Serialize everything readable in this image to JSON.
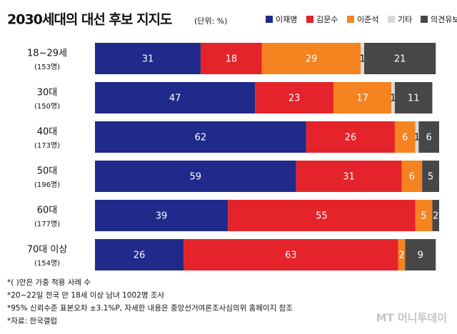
{
  "chart_data": {
    "type": "stacked-bar-horizontal",
    "title": "2030세대의 대선 후보 지지도",
    "subtitle": "(단위: %)",
    "categories": [
      "18~29세",
      "30대",
      "40대",
      "50대",
      "60대",
      "70대 이상"
    ],
    "category_counts": [
      "(153명)",
      "(150명)",
      "(173명)",
      "(196명)",
      "(177명)",
      "(154명)"
    ],
    "series": [
      {
        "name": "이재명",
        "color": "#1f2a8a",
        "values": [
          31,
          47,
          62,
          59,
          39,
          26
        ]
      },
      {
        "name": "김문수",
        "color": "#e5232b",
        "values": [
          18,
          23,
          26,
          31,
          55,
          63
        ]
      },
      {
        "name": "이준석",
        "color": "#f5831f",
        "values": [
          29,
          17,
          6,
          6,
          5,
          2
        ]
      },
      {
        "name": "기타",
        "color": "#d9d9d9",
        "values": [
          1,
          1,
          1,
          null,
          null,
          null
        ]
      },
      {
        "name": "의견유보",
        "color": "#474747",
        "values": [
          21,
          11,
          6,
          5,
          2,
          9
        ]
      }
    ],
    "xlim": [
      0,
      101
    ],
    "notes": [
      "*( )안은 가중 적용 사례 수",
      "*20~22일 전국 만 18세 이상 남녀 1002명 조사",
      "*95% 신뢰수준 표본오차 ±3.1%P, 자세한 내용은 중앙선거여론조사심의위 홈페이지 참조",
      "*자료: 한국갤럽"
    ],
    "watermark": "MT 머니투데이"
  }
}
